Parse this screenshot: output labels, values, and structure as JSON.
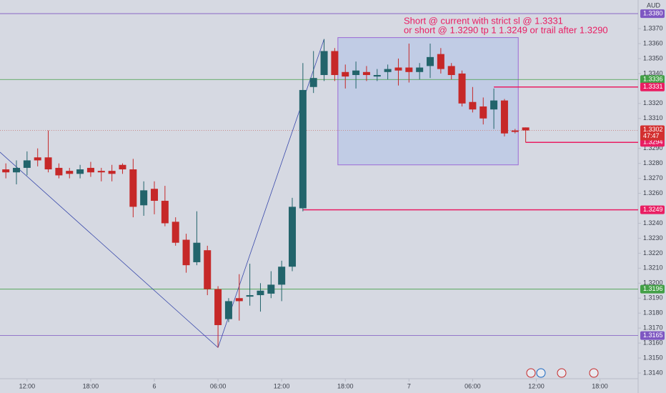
{
  "chart_data": {
    "type": "candlestick",
    "currency": "AUD",
    "annotation": [
      "Short @ current with strict sl @ 1.3331",
      "or short @ 1.3290 tp 1 1.3249 or trail after 1.3290"
    ],
    "up_color": "#22646b",
    "down_color": "#c62828",
    "open": [
      1.3276,
      1.3274,
      1.3277,
      1.3284,
      1.3284,
      1.3277,
      1.3275,
      1.3273,
      1.3277,
      1.3275,
      1.3275,
      1.3279,
      1.3276,
      1.3252,
      1.3263,
      1.3255,
      1.3241,
      1.3229,
      1.3214,
      1.3222,
      1.3196,
      1.3176,
      1.319,
      1.3191,
      1.3192,
      1.3193,
      1.3199,
      1.3211,
      1.325,
      1.3331,
      1.3339,
      1.3355,
      1.3341,
      1.3339,
      1.3341,
      1.3338,
      1.3341,
      1.3344,
      1.3344,
      1.3341,
      1.3345,
      1.3353,
      1.3345,
      1.334,
      1.3321,
      1.3318,
      1.3316,
      1.3322,
      1.3302,
      1.3304
    ],
    "high": [
      1.328,
      1.3282,
      1.3288,
      1.329,
      1.3302,
      1.328,
      1.3277,
      1.3279,
      1.3281,
      1.3277,
      1.3279,
      1.328,
      1.3283,
      1.3268,
      1.3268,
      1.3265,
      1.3244,
      1.3233,
      1.3248,
      1.3225,
      1.3198,
      1.319,
      1.3206,
      1.3213,
      1.32,
      1.3208,
      1.3215,
      1.3257,
      1.3347,
      1.3355,
      1.3363,
      1.3357,
      1.3346,
      1.3348,
      1.3345,
      1.3343,
      1.3346,
      1.335,
      1.336,
      1.3347,
      1.336,
      1.3357,
      1.3347,
      1.3342,
      1.3331,
      1.3324,
      1.333,
      1.3323,
      1.3303,
      1.3304
    ],
    "low": [
      1.327,
      1.3266,
      1.3272,
      1.3278,
      1.3274,
      1.327,
      1.327,
      1.327,
      1.3271,
      1.3268,
      1.3268,
      1.3273,
      1.3244,
      1.3245,
      1.3246,
      1.3238,
      1.3225,
      1.3207,
      1.3212,
      1.3192,
      1.3157,
      1.3174,
      1.3175,
      1.3185,
      1.3181,
      1.319,
      1.3188,
      1.3208,
      1.3248,
      1.3327,
      1.3335,
      1.3335,
      1.333,
      1.333,
      1.3335,
      1.3335,
      1.3336,
      1.3332,
      1.3334,
      1.3336,
      1.3337,
      1.334,
      1.3336,
      1.3318,
      1.3314,
      1.3306,
      1.3303,
      1.3298,
      1.33,
      1.3294
    ],
    "close": [
      1.3274,
      1.3277,
      1.3282,
      1.3282,
      1.3276,
      1.3272,
      1.3273,
      1.3276,
      1.3274,
      1.3274,
      1.3273,
      1.3276,
      1.3251,
      1.3262,
      1.3255,
      1.324,
      1.3227,
      1.3212,
      1.3227,
      1.3196,
      1.3172,
      1.3188,
      1.3188,
      1.3192,
      1.3195,
      1.3199,
      1.3211,
      1.3251,
      1.3329,
      1.3337,
      1.3355,
      1.3339,
      1.3338,
      1.3342,
      1.3339,
      1.3339,
      1.3343,
      1.3342,
      1.3341,
      1.3344,
      1.3351,
      1.3343,
      1.3339,
      1.332,
      1.3316,
      1.331,
      1.3322,
      1.33,
      1.3301,
      1.3302
    ],
    "xlim": [
      -0.55,
      59.6
    ],
    "xticks": [
      {
        "value": 2,
        "label": "12:00"
      },
      {
        "value": 8,
        "label": "18:00"
      },
      {
        "value": 14,
        "label": "6"
      },
      {
        "value": 20,
        "label": "06:00"
      },
      {
        "value": 26,
        "label": "12:00"
      },
      {
        "value": 32,
        "label": "18:00"
      },
      {
        "value": 38,
        "label": "7"
      },
      {
        "value": 44,
        "label": "06:00"
      },
      {
        "value": 50,
        "label": "12:00"
      },
      {
        "value": 56,
        "label": "18:00"
      }
    ],
    "ylim": [
      1.31362,
      1.33891
    ],
    "yticks": [
      {
        "value": 1.337,
        "label": "1.3370"
      },
      {
        "value": 1.336,
        "label": "1.3360"
      },
      {
        "value": 1.335,
        "label": "1.3350"
      },
      {
        "value": 1.334,
        "label": "1.3340"
      },
      {
        "value": 1.332,
        "label": "1.3320"
      },
      {
        "value": 1.331,
        "label": "1.3310"
      },
      {
        "value": 1.329,
        "label": "1.3290"
      },
      {
        "value": 1.328,
        "label": "1.3280"
      },
      {
        "value": 1.327,
        "label": "1.3270"
      },
      {
        "value": 1.326,
        "label": "1.3260"
      },
      {
        "value": 1.324,
        "label": "1.3240"
      },
      {
        "value": 1.323,
        "label": "1.3230"
      },
      {
        "value": 1.322,
        "label": "1.3220"
      },
      {
        "value": 1.321,
        "label": "1.3210"
      },
      {
        "value": 1.32,
        "label": "1.3200"
      },
      {
        "value": 1.319,
        "label": "1.3190"
      },
      {
        "value": 1.318,
        "label": "1.3180"
      },
      {
        "value": 1.317,
        "label": "1.3170"
      },
      {
        "value": 1.316,
        "label": "1.3160"
      },
      {
        "value": 1.315,
        "label": "1.3150"
      },
      {
        "value": 1.314,
        "label": "1.3140"
      }
    ],
    "levels": [
      {
        "value": 1.338,
        "label": "1.3380",
        "color": "#7e57c2"
      },
      {
        "value": 1.3336,
        "label": "1.3336",
        "color": "#43a047"
      },
      {
        "value": 1.3331,
        "label": "1.3331",
        "color": "#e91e63",
        "from": 46
      },
      {
        "value": 1.3294,
        "label": "1.3294",
        "color": "#e91e63",
        "from": 49
      },
      {
        "value": 1.3249,
        "label": "1.3249",
        "color": "#e91e63",
        "from": 28
      },
      {
        "value": 1.3196,
        "label": "1.3196",
        "color": "#43a047"
      },
      {
        "value": 1.3165,
        "label": "1.3165",
        "color": "#7e57c2"
      }
    ],
    "current": {
      "value": 1.3302,
      "label": "1.3302",
      "countdown": "47:47",
      "color": "#d32f2f"
    },
    "zone": {
      "x": [
        31.3,
        48.3
      ],
      "y": [
        1.3364,
        1.3279
      ],
      "color": "#a9bde8",
      "border": "#9c6ad6"
    },
    "trendlines": [
      {
        "x": [
          -0.55,
          20
        ],
        "y": [
          1.32875,
          1.3157
        ],
        "color": "#3949ab"
      },
      {
        "x": [
          20,
          30
        ],
        "y": [
          1.3157,
          1.3363
        ],
        "color": "#3949ab"
      }
    ]
  }
}
